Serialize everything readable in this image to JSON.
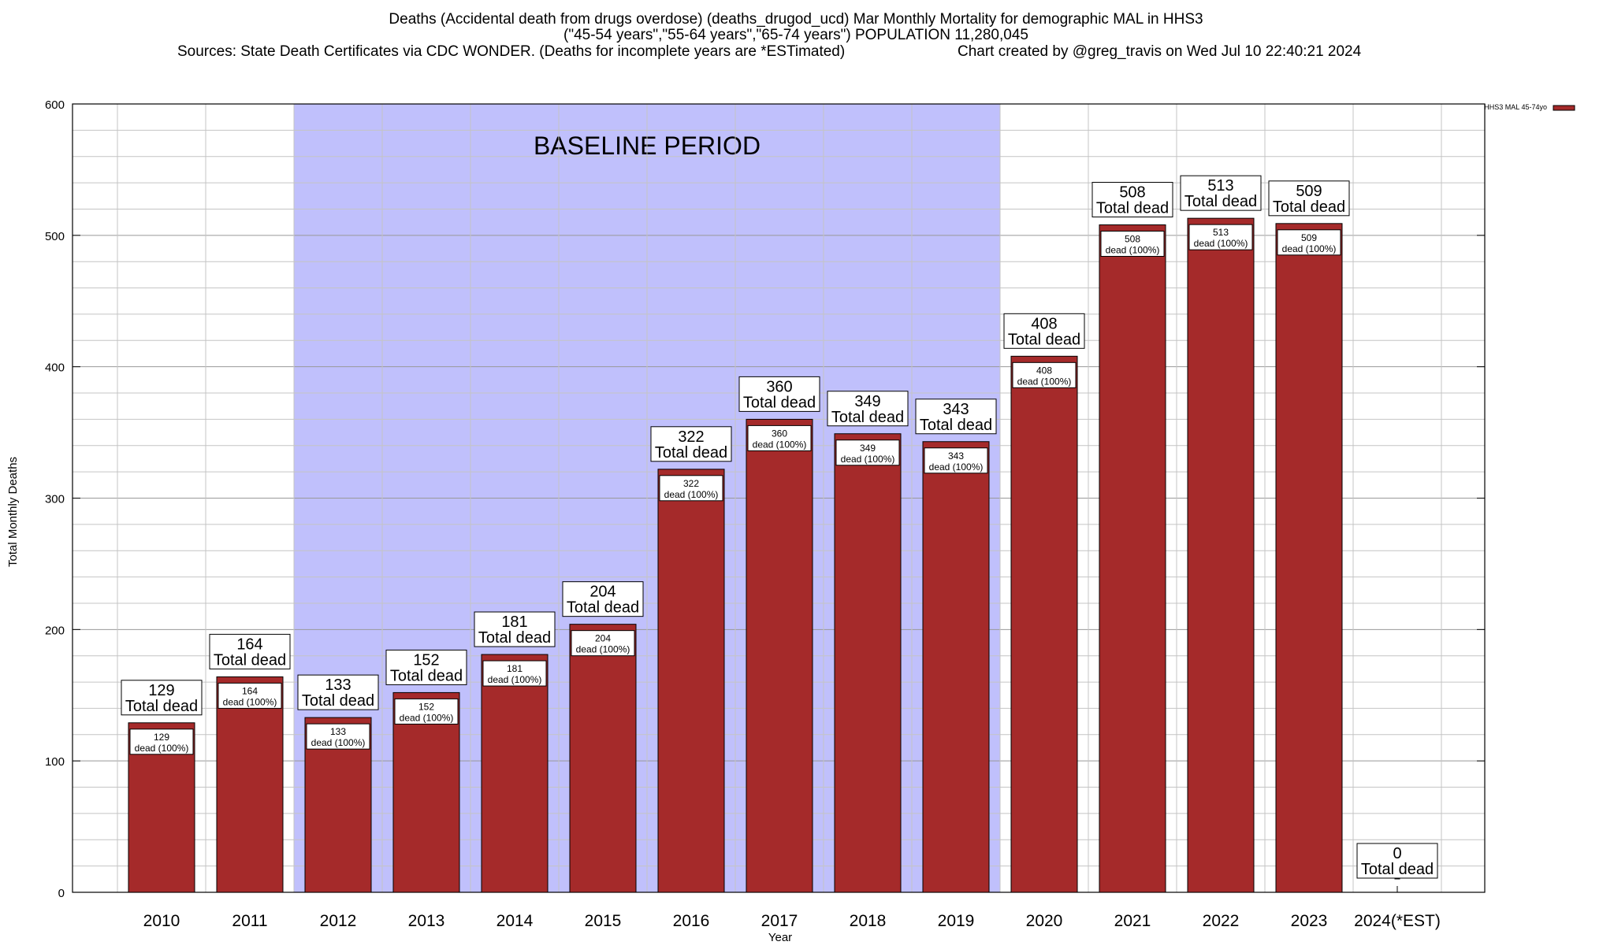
{
  "title_lines": [
    "Deaths (Accidental death from drugs overdose) (deaths_drugod_ucd) Mar Monthly Mortality for demographic MAL in HHS3",
    "(\"45-54 years\",\"55-64 years\",\"65-74 years\") POPULATION 11,280,045",
    "Sources: State Death Certificates via CDC WONDER. (Deaths for incomplete years are *ESTimated)",
    "Chart created by @greg_travis on Wed Jul 10 22:40:21 2024"
  ],
  "colors": {
    "bar": "#a52a2a",
    "baseline": "#c0c0fc"
  },
  "chart_data": {
    "type": "bar",
    "xlabel": "Year",
    "ylabel": "Total Monthly Deaths",
    "ylim": [
      0,
      600
    ],
    "yticks": [
      0,
      100,
      200,
      300,
      400,
      500,
      600
    ],
    "grid": true,
    "legend_position": "top-right",
    "categories": [
      "2010",
      "2011",
      "2012",
      "2013",
      "2014",
      "2015",
      "2016",
      "2017",
      "2018",
      "2019",
      "2020",
      "2021",
      "2022",
      "2023",
      "2024(*EST)"
    ],
    "series": [
      {
        "name": "HHS3 MAL 45-74yo",
        "values": [
          129,
          164,
          133,
          152,
          181,
          204,
          322,
          360,
          349,
          343,
          408,
          508,
          513,
          509,
          0
        ]
      }
    ],
    "baseline": {
      "label": "BASELINE PERIOD",
      "from": "2012",
      "to": "2019"
    },
    "label_total_suffix": "Total dead",
    "label_inner_suffix": "dead (100%)"
  }
}
